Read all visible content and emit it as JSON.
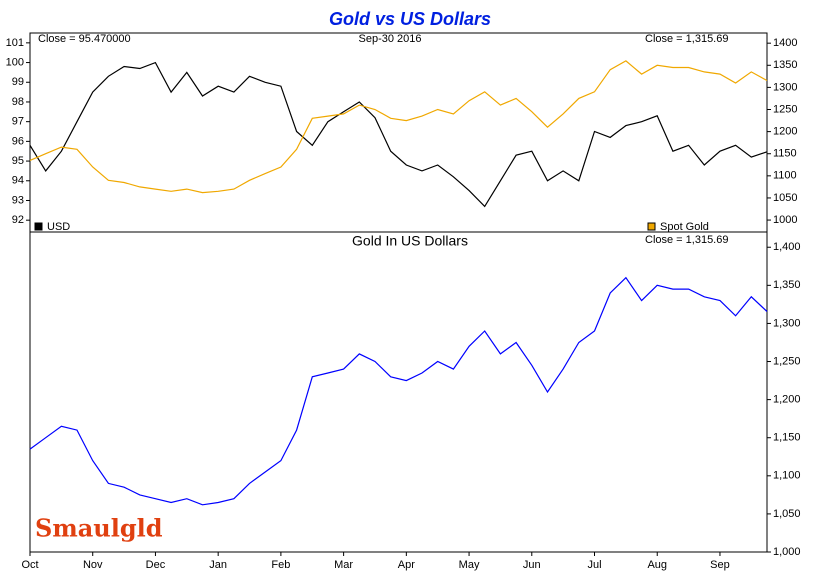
{
  "chart_data": [
    {
      "type": "line",
      "title": "Gold vs US Dollars",
      "annotations": [
        "Close = 95.470000",
        "Sep-30  2016",
        "Close = 1,315.69"
      ],
      "series": [
        {
          "name": "USD",
          "color": "#000000",
          "values": [
            95.8,
            94.5,
            95.5,
            97.0,
            98.5,
            99.3,
            99.8,
            99.7,
            100.0,
            98.5,
            99.5,
            98.3,
            98.8,
            98.5,
            99.3,
            99.0,
            98.8,
            96.5,
            95.8,
            97.0,
            97.5,
            98.0,
            97.2,
            95.5,
            94.8,
            94.5,
            94.8,
            94.2,
            93.5,
            92.7,
            94.0,
            95.3,
            95.5,
            94.0,
            94.5,
            94.0,
            96.5,
            96.2,
            96.8,
            97.0,
            97.3,
            95.5,
            95.8,
            94.8,
            95.5,
            95.8,
            95.2,
            95.47
          ]
        },
        {
          "name": "Spot Gold",
          "color": "#f0a800",
          "axis": "y2",
          "values": [
            1135,
            1150,
            1165,
            1160,
            1120,
            1090,
            1085,
            1075,
            1070,
            1065,
            1070,
            1062,
            1065,
            1070,
            1090,
            1105,
            1120,
            1160,
            1230,
            1235,
            1240,
            1260,
            1250,
            1230,
            1225,
            1235,
            1250,
            1240,
            1270,
            1290,
            1260,
            1275,
            1245,
            1210,
            1240,
            1275,
            1290,
            1340,
            1360,
            1330,
            1350,
            1345,
            1345,
            1335,
            1330,
            1310,
            1335,
            1315.69
          ]
        }
      ],
      "ylim": [
        91.4,
        101.5
      ],
      "yticks": [
        92,
        93,
        94,
        95,
        96,
        97,
        98,
        99,
        100,
        101
      ],
      "y2lim": [
        973,
        1423
      ],
      "y2ticks": [
        1000,
        1050,
        1100,
        1150,
        1200,
        1250,
        1300,
        1350,
        1400
      ]
    },
    {
      "type": "line",
      "title": "Gold In US Dollars",
      "annotations": [
        "Close = 1,315.69"
      ],
      "categories": [
        "Oct",
        null,
        null,
        null,
        "Nov",
        null,
        null,
        null,
        "Dec",
        null,
        null,
        null,
        "Jan",
        null,
        null,
        null,
        "Feb",
        null,
        null,
        null,
        "Mar",
        null,
        null,
        null,
        "Apr",
        null,
        null,
        null,
        "May",
        null,
        null,
        null,
        "Jun",
        null,
        null,
        null,
        "Jul",
        null,
        null,
        null,
        "Aug",
        null,
        null,
        null,
        "Sep",
        null,
        null,
        null
      ],
      "series": [
        {
          "name": "Gold In US Dollars",
          "color": "#0000ff",
          "axis": "y2",
          "values": [
            1135,
            1150,
            1165,
            1160,
            1120,
            1090,
            1085,
            1075,
            1070,
            1065,
            1070,
            1062,
            1065,
            1070,
            1090,
            1105,
            1120,
            1160,
            1230,
            1235,
            1240,
            1260,
            1250,
            1230,
            1225,
            1235,
            1250,
            1240,
            1270,
            1290,
            1260,
            1275,
            1245,
            1210,
            1240,
            1275,
            1290,
            1340,
            1360,
            1330,
            1350,
            1345,
            1345,
            1335,
            1330,
            1310,
            1335,
            1315.69
          ]
        }
      ],
      "y2lim": [
        1000,
        1420
      ],
      "y2ticks": [
        {
          "value": 1000,
          "label": "1,000"
        },
        {
          "value": 1050,
          "label": "1,050"
        },
        {
          "value": 1100,
          "label": "1,100"
        },
        {
          "value": 1150,
          "label": "1,150"
        },
        {
          "value": 1200,
          "label": "1,200"
        },
        {
          "value": 1250,
          "label": "1,250"
        },
        {
          "value": 1300,
          "label": "1,300"
        },
        {
          "value": 1350,
          "label": "1,350"
        },
        {
          "value": 1400,
          "label": "1,400"
        }
      ]
    }
  ],
  "logo": "Smaulgld"
}
